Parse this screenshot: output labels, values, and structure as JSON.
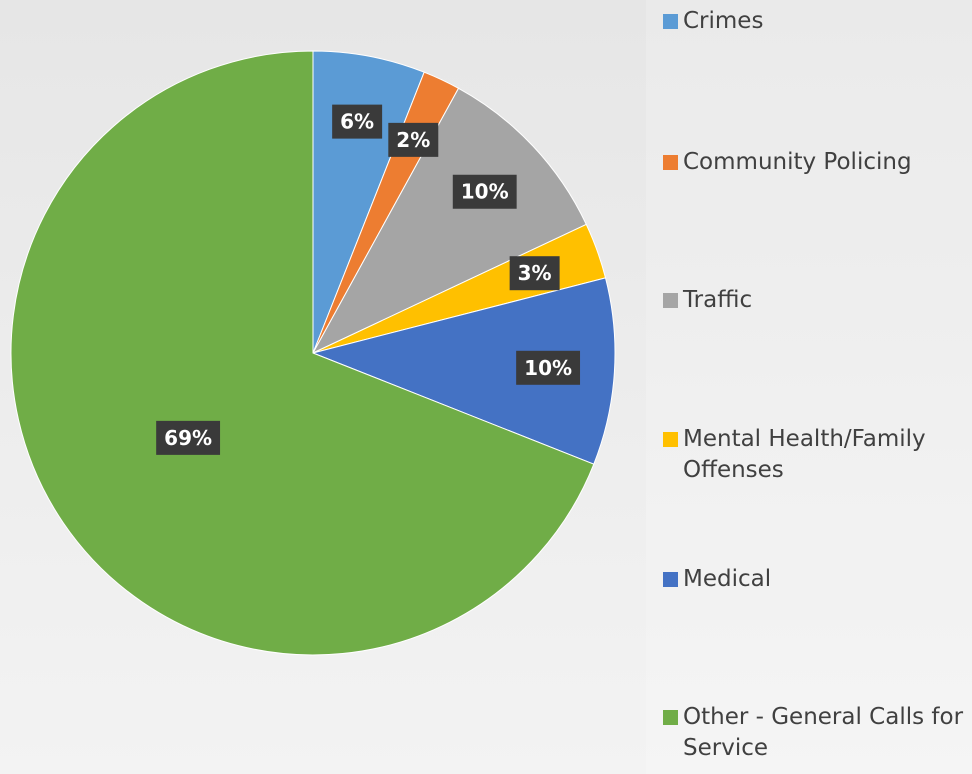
{
  "chart_data": {
    "type": "pie",
    "categories": [
      "Crimes",
      "Community Policing",
      "Traffic",
      "Mental Health/Family Offenses",
      "Medical",
      "Other - General Calls for Service"
    ],
    "values": [
      6,
      2,
      10,
      3,
      10,
      69
    ],
    "value_labels": [
      "6%",
      "2%",
      "10%",
      "3%",
      "10%",
      "69%"
    ],
    "colors": [
      "#5b9bd5",
      "#ed7d31",
      "#a5a5a5",
      "#ffc000",
      "#4472c4",
      "#70ad47"
    ],
    "legend": "right"
  }
}
